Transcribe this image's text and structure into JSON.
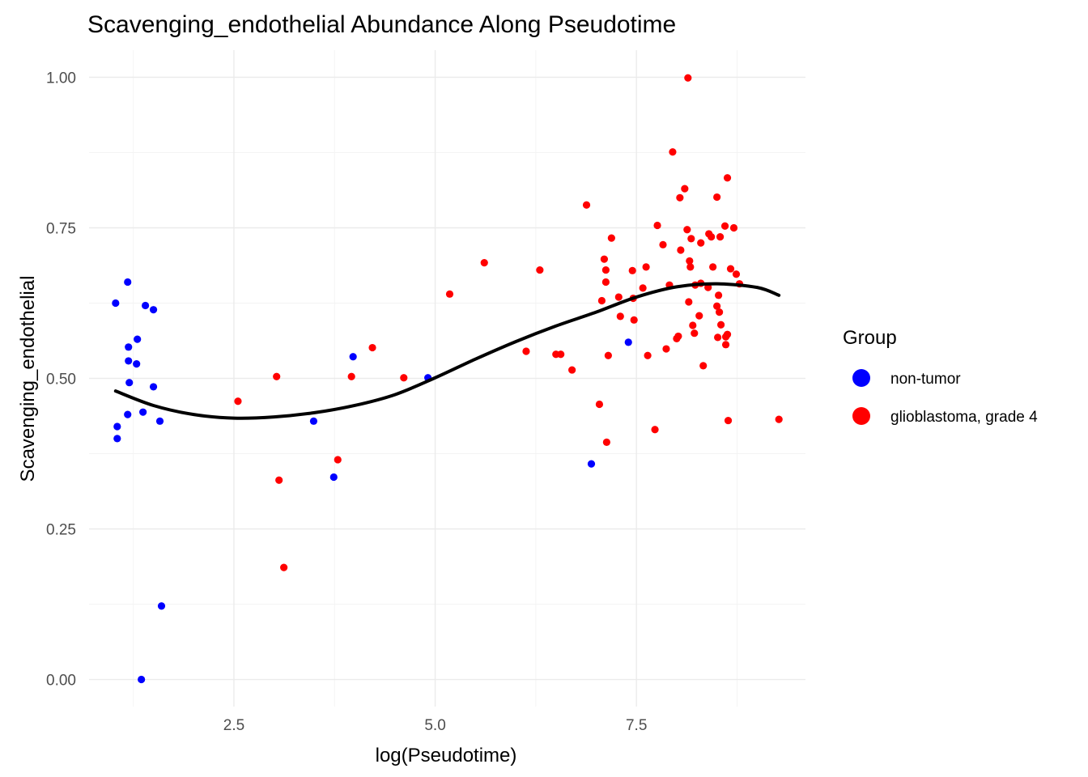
{
  "chart_data": {
    "type": "scatter",
    "title": "Scavenging_endothelial Abundance Along Pseudotime",
    "xlabel": "log(Pseudotime)",
    "ylabel": "Scavenging_endothelial",
    "xlim": [
      0.7,
      9.6
    ],
    "ylim": [
      -0.045,
      1.045
    ],
    "x_ticks": [
      2.5,
      5.0,
      7.5
    ],
    "x_tick_labels": [
      "2.5",
      "5.0",
      "7.5"
    ],
    "y_ticks": [
      0,
      0.25,
      0.5,
      0.75,
      1.0
    ],
    "y_tick_labels": [
      "0.00",
      "0.25",
      "0.50",
      "0.75",
      "1.00"
    ],
    "grid": true,
    "legend": {
      "title": "Group",
      "position": "right",
      "entries": [
        {
          "label": "non-tumor",
          "color": "#0000ff"
        },
        {
          "label": "glioblastoma, grade 4",
          "color": "#ff0000"
        }
      ]
    },
    "series": [
      {
        "name": "non-tumor",
        "color": "#0000ff",
        "points": [
          [
            1.03,
            0.625
          ],
          [
            1.05,
            0.42
          ],
          [
            1.05,
            0.4
          ],
          [
            1.18,
            0.66
          ],
          [
            1.18,
            0.44
          ],
          [
            1.19,
            0.552
          ],
          [
            1.19,
            0.529
          ],
          [
            1.2,
            0.493
          ],
          [
            1.3,
            0.565
          ],
          [
            1.29,
            0.524
          ],
          [
            1.35,
            0.0
          ],
          [
            1.37,
            0.444
          ],
          [
            1.4,
            0.621
          ],
          [
            1.5,
            0.614
          ],
          [
            1.5,
            0.486
          ],
          [
            1.58,
            0.429
          ],
          [
            1.6,
            0.122
          ],
          [
            3.49,
            0.429
          ],
          [
            3.74,
            0.336
          ],
          [
            3.98,
            0.536
          ],
          [
            4.91,
            0.501
          ],
          [
            6.94,
            0.358
          ],
          [
            7.4,
            0.56
          ]
        ]
      },
      {
        "name": "glioblastoma, grade 4",
        "color": "#ff0000",
        "points": [
          [
            2.55,
            0.462
          ],
          [
            3.03,
            0.503
          ],
          [
            3.06,
            0.331
          ],
          [
            3.12,
            0.186
          ],
          [
            3.79,
            0.365
          ],
          [
            3.96,
            0.503
          ],
          [
            4.22,
            0.551
          ],
          [
            4.61,
            0.501
          ],
          [
            5.18,
            0.64
          ],
          [
            5.61,
            0.692
          ],
          [
            6.13,
            0.545
          ],
          [
            6.3,
            0.68
          ],
          [
            6.5,
            0.54
          ],
          [
            6.56,
            0.54
          ],
          [
            6.7,
            0.514
          ],
          [
            6.88,
            0.788
          ],
          [
            7.04,
            0.457
          ],
          [
            7.07,
            0.629
          ],
          [
            7.1,
            0.698
          ],
          [
            7.12,
            0.68
          ],
          [
            7.12,
            0.66
          ],
          [
            7.13,
            0.394
          ],
          [
            7.15,
            0.538
          ],
          [
            7.19,
            0.733
          ],
          [
            7.28,
            0.635
          ],
          [
            7.3,
            0.603
          ],
          [
            7.45,
            0.679
          ],
          [
            7.46,
            0.633
          ],
          [
            7.47,
            0.597
          ],
          [
            7.58,
            0.65
          ],
          [
            7.62,
            0.685
          ],
          [
            7.64,
            0.538
          ],
          [
            7.73,
            0.415
          ],
          [
            7.76,
            0.754
          ],
          [
            7.83,
            0.722
          ],
          [
            7.87,
            0.549
          ],
          [
            7.91,
            0.655
          ],
          [
            7.95,
            0.876
          ],
          [
            8.0,
            0.566
          ],
          [
            8.02,
            0.57
          ],
          [
            8.04,
            0.8
          ],
          [
            8.05,
            0.713
          ],
          [
            8.1,
            0.815
          ],
          [
            8.13,
            0.747
          ],
          [
            8.14,
            0.999
          ],
          [
            8.15,
            0.627
          ],
          [
            8.16,
            0.695
          ],
          [
            8.17,
            0.685
          ],
          [
            8.18,
            0.732
          ],
          [
            8.2,
            0.588
          ],
          [
            8.22,
            0.575
          ],
          [
            8.23,
            0.655
          ],
          [
            8.28,
            0.604
          ],
          [
            8.3,
            0.725
          ],
          [
            8.3,
            0.658
          ],
          [
            8.33,
            0.521
          ],
          [
            8.39,
            0.651
          ],
          [
            8.4,
            0.74
          ],
          [
            8.43,
            0.735
          ],
          [
            8.45,
            0.685
          ],
          [
            8.5,
            0.62
          ],
          [
            8.5,
            0.801
          ],
          [
            8.51,
            0.568
          ],
          [
            8.52,
            0.638
          ],
          [
            8.53,
            0.61
          ],
          [
            8.54,
            0.735
          ],
          [
            8.55,
            0.589
          ],
          [
            8.6,
            0.753
          ],
          [
            8.61,
            0.569
          ],
          [
            8.61,
            0.556
          ],
          [
            8.63,
            0.833
          ],
          [
            8.63,
            0.573
          ],
          [
            8.64,
            0.43
          ],
          [
            8.67,
            0.682
          ],
          [
            8.71,
            0.75
          ],
          [
            8.74,
            0.673
          ],
          [
            8.78,
            0.657
          ],
          [
            9.27,
            0.432
          ]
        ]
      }
    ],
    "smooth_curve": {
      "color": "#000000",
      "points": [
        [
          1.03,
          0.479
        ],
        [
          1.5,
          0.455
        ],
        [
          2.0,
          0.44
        ],
        [
          2.5,
          0.434
        ],
        [
          3.0,
          0.436
        ],
        [
          3.5,
          0.443
        ],
        [
          4.0,
          0.455
        ],
        [
          4.5,
          0.473
        ],
        [
          5.0,
          0.501
        ],
        [
          5.5,
          0.532
        ],
        [
          6.0,
          0.561
        ],
        [
          6.5,
          0.587
        ],
        [
          7.0,
          0.61
        ],
        [
          7.5,
          0.635
        ],
        [
          8.0,
          0.652
        ],
        [
          8.5,
          0.657
        ],
        [
          9.0,
          0.651
        ],
        [
          9.27,
          0.638
        ]
      ]
    }
  }
}
